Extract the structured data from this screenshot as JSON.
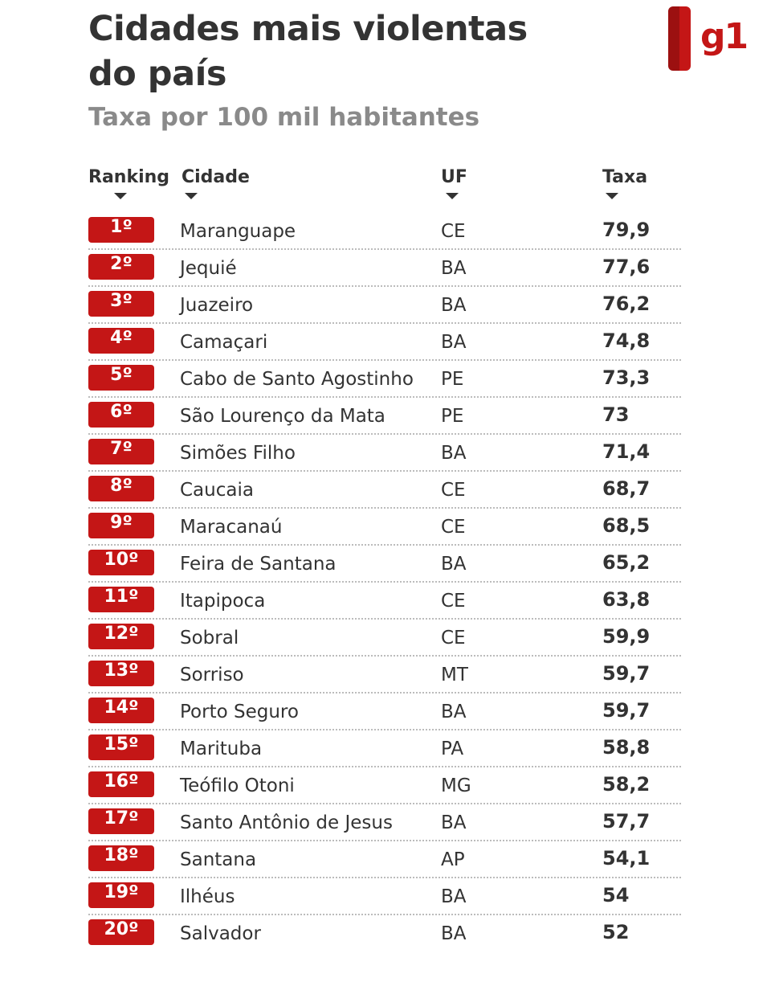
{
  "header": {
    "title": "Cidades mais violentas do país",
    "subtitle": "Taxa por 100 mil habitantes",
    "logo_text": "g1"
  },
  "colors": {
    "accent": "#c41616",
    "text": "#333333",
    "subtitle": "#8a8a8a"
  },
  "chart_data": {
    "type": "table",
    "title": "Cidades mais violentas do país",
    "subtitle": "Taxa por 100 mil habitantes",
    "columns": [
      "Ranking",
      "Cidade",
      "UF",
      "Taxa"
    ],
    "rows": [
      {
        "rank": "1º",
        "city": "Maranguape",
        "uf": "CE",
        "rate": "79,9"
      },
      {
        "rank": "2º",
        "city": "Jequié",
        "uf": "BA",
        "rate": "77,6"
      },
      {
        "rank": "3º",
        "city": "Juazeiro",
        "uf": "BA",
        "rate": "76,2"
      },
      {
        "rank": "4º",
        "city": "Camaçari",
        "uf": "BA",
        "rate": "74,8"
      },
      {
        "rank": "5º",
        "city": "Cabo de Santo Agostinho",
        "uf": "PE",
        "rate": "73,3"
      },
      {
        "rank": "6º",
        "city": "São Lourenço da Mata",
        "uf": "PE",
        "rate": "73"
      },
      {
        "rank": "7º",
        "city": "Simões Filho",
        "uf": "BA",
        "rate": "71,4"
      },
      {
        "rank": "8º",
        "city": "Caucaia",
        "uf": "CE",
        "rate": "68,7"
      },
      {
        "rank": "9º",
        "city": "Maracanaú",
        "uf": "CE",
        "rate": "68,5"
      },
      {
        "rank": "10º",
        "city": "Feira de Santana",
        "uf": "BA",
        "rate": "65,2"
      },
      {
        "rank": "11º",
        "city": "Itapipoca",
        "uf": "CE",
        "rate": "63,8"
      },
      {
        "rank": "12º",
        "city": "Sobral",
        "uf": "CE",
        "rate": "59,9"
      },
      {
        "rank": "13º",
        "city": "Sorriso",
        "uf": "MT",
        "rate": "59,7"
      },
      {
        "rank": "14º",
        "city": "Porto Seguro",
        "uf": "BA",
        "rate": "59,7"
      },
      {
        "rank": "15º",
        "city": "Marituba",
        "uf": "PA",
        "rate": "58,8"
      },
      {
        "rank": "16º",
        "city": "Teófilo Otoni",
        "uf": "MG",
        "rate": "58,2"
      },
      {
        "rank": "17º",
        "city": "Santo Antônio de Jesus",
        "uf": "BA",
        "rate": "57,7"
      },
      {
        "rank": "18º",
        "city": "Santana",
        "uf": "AP",
        "rate": "54,1"
      },
      {
        "rank": "19º",
        "city": "Ilhéus",
        "uf": "BA",
        "rate": "54"
      },
      {
        "rank": "20º",
        "city": "Salvador",
        "uf": "BA",
        "rate": "52"
      }
    ]
  }
}
